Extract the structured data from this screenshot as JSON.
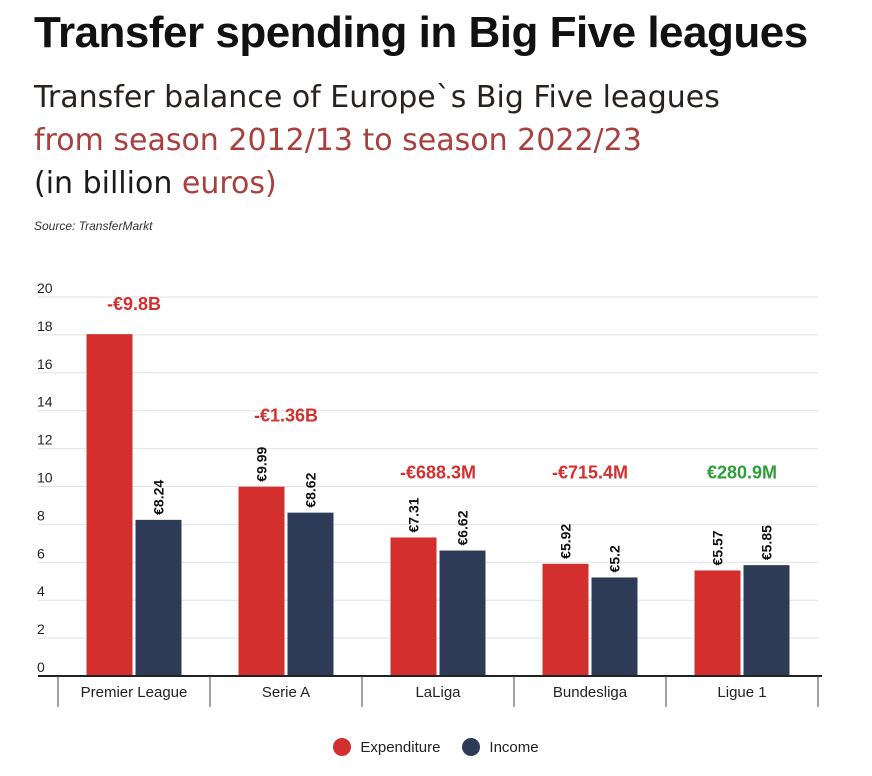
{
  "title": "Transfer spending in Big Five leagues",
  "subtitle": {
    "line1": "Transfer balance of Europe`s Big Five leagues",
    "line2": "from season 2012/13 to season 2022/23",
    "line3_open": "(in billion ",
    "line3_unit": "euros)"
  },
  "source": "Source: TransferMarkt",
  "colors": {
    "expenditure": "#d42f2f",
    "income": "#2e3b57",
    "negative_balance": "#d42f2f",
    "positive_balance": "#2e9e3a",
    "grid": "#e2e2e2"
  },
  "chart_data": {
    "type": "bar",
    "title": "Transfer spending in Big Five leagues",
    "ylim": [
      0,
      20
    ],
    "yticks": [
      0,
      2,
      4,
      6,
      8,
      10,
      12,
      14,
      16,
      18,
      20
    ],
    "grid": true,
    "categories": [
      "Premier League",
      "Serie A",
      "LaLiga",
      "Bundesliga",
      "Ligue 1"
    ],
    "series": [
      {
        "name": "Expenditure",
        "values": [
          18.04,
          9.99,
          7.31,
          5.92,
          5.57
        ],
        "labels": [
          "",
          "€9.99",
          "€7.31",
          "€5.92",
          "€5.57"
        ]
      },
      {
        "name": "Income",
        "values": [
          8.24,
          8.62,
          6.62,
          5.2,
          5.85
        ],
        "labels": [
          "€8.24",
          "€8.62",
          "€6.62",
          "€5.2",
          "€5.85"
        ]
      }
    ],
    "balance_labels": [
      "-€9.8B",
      "-€1.36B",
      "-€688.3M",
      "-€715.4M",
      "€280.9M"
    ],
    "balance_positive": [
      false,
      false,
      false,
      false,
      true
    ],
    "legend_position": "bottom"
  }
}
